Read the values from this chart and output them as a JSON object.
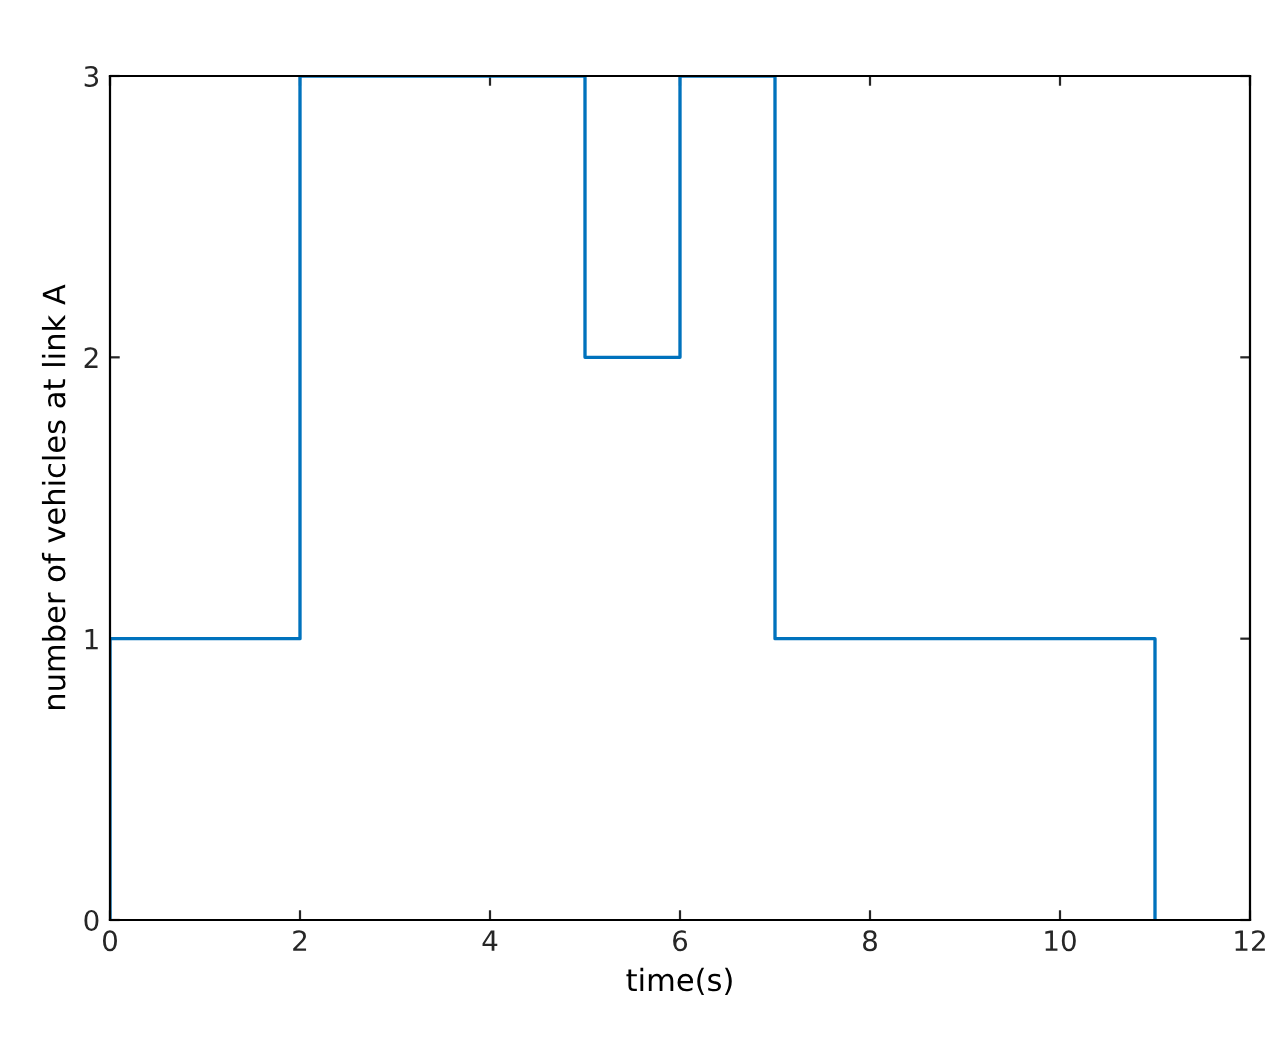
{
  "chart_data": {
    "type": "step",
    "xlabel": "time(s)",
    "ylabel": "number of vehicles at link A",
    "x": [
      0,
      0,
      2,
      5,
      6,
      7,
      11
    ],
    "series": [
      {
        "color": "#0072bd",
        "values": [
          0,
          1,
          3,
          2,
          3,
          1,
          0
        ]
      }
    ],
    "xlim": [
      0,
      12
    ],
    "xticks": [
      0,
      2,
      4,
      6,
      8,
      10,
      12
    ],
    "ylim": [
      0,
      3
    ],
    "yticks": [
      0,
      1,
      2,
      3
    ],
    "grid": false,
    "legend": false
  }
}
